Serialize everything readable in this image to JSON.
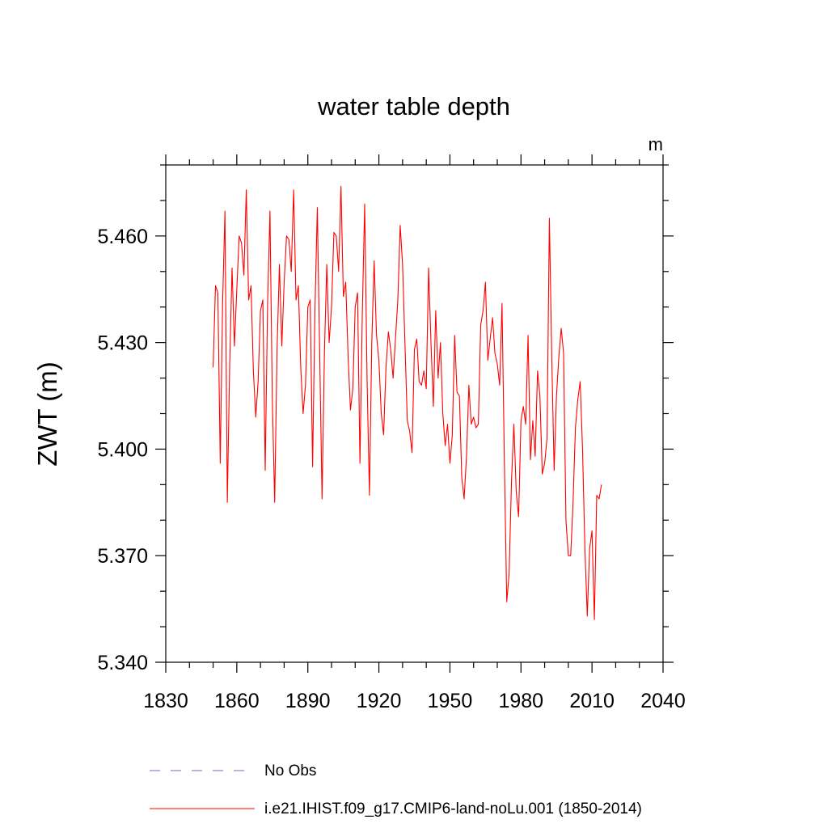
{
  "chart_data": {
    "type": "line",
    "title": "water table depth",
    "units": "m",
    "ylabel": "ZWT  (m)",
    "xlabel": "",
    "xlim": [
      1830,
      2040
    ],
    "ylim": [
      5.34,
      5.48
    ],
    "x_ticks": [
      1830,
      1860,
      1890,
      1920,
      1950,
      1980,
      2010,
      2040
    ],
    "y_ticks": [
      5.34,
      5.37,
      5.4,
      5.43,
      5.46
    ],
    "y_tick_labels": [
      "5.340",
      "5.370",
      "5.400",
      "5.430",
      "5.460"
    ],
    "grid": false,
    "legend_position": "bottom",
    "series": [
      {
        "name": "i.e21.IHIST.f09_g17.CMIP6-land-noLu.001 (1850-2014)",
        "color": "#ff0000",
        "style": "solid",
        "x_start": 1850,
        "x_step": 1,
        "values": [
          5.423,
          5.446,
          5.444,
          5.396,
          5.441,
          5.467,
          5.385,
          5.424,
          5.451,
          5.429,
          5.445,
          5.46,
          5.458,
          5.449,
          5.473,
          5.442,
          5.446,
          5.422,
          5.409,
          5.419,
          5.439,
          5.442,
          5.394,
          5.441,
          5.467,
          5.414,
          5.385,
          5.428,
          5.452,
          5.429,
          5.447,
          5.46,
          5.459,
          5.45,
          5.473,
          5.442,
          5.446,
          5.423,
          5.41,
          5.418,
          5.44,
          5.442,
          5.395,
          5.439,
          5.468,
          5.427,
          5.386,
          5.427,
          5.452,
          5.43,
          5.44,
          5.461,
          5.46,
          5.45,
          5.474,
          5.443,
          5.447,
          5.426,
          5.411,
          5.417,
          5.44,
          5.444,
          5.396,
          5.438,
          5.469,
          5.42,
          5.387,
          5.43,
          5.453,
          5.432,
          5.425,
          5.41,
          5.404,
          5.423,
          5.433,
          5.428,
          5.42,
          5.431,
          5.442,
          5.463,
          5.452,
          5.43,
          5.408,
          5.405,
          5.399,
          5.428,
          5.431,
          5.419,
          5.418,
          5.422,
          5.417,
          5.451,
          5.43,
          5.412,
          5.439,
          5.42,
          5.43,
          5.41,
          5.401,
          5.407,
          5.396,
          5.404,
          5.432,
          5.416,
          5.415,
          5.392,
          5.386,
          5.398,
          5.418,
          5.407,
          5.409,
          5.406,
          5.407,
          5.435,
          5.439,
          5.447,
          5.425,
          5.431,
          5.437,
          5.427,
          5.424,
          5.418,
          5.441,
          5.396,
          5.357,
          5.365,
          5.391,
          5.407,
          5.388,
          5.381,
          5.408,
          5.412,
          5.407,
          5.432,
          5.397,
          5.408,
          5.398,
          5.422,
          5.415,
          5.393,
          5.396,
          5.403,
          5.465,
          5.426,
          5.394,
          5.415,
          5.426,
          5.434,
          5.427,
          5.38,
          5.37,
          5.37,
          5.385,
          5.406,
          5.414,
          5.419,
          5.4,
          5.372,
          5.353,
          5.372,
          5.377,
          5.352,
          5.387,
          5.386,
          5.39
        ]
      },
      {
        "name": "No Obs",
        "color": "#6a6acd",
        "style": "dashed",
        "values": []
      }
    ]
  }
}
